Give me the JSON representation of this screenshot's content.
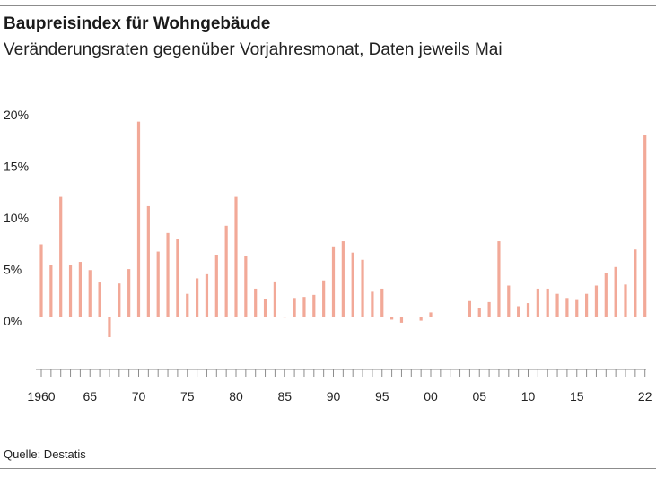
{
  "header": {
    "title": "Baupreisindex für Wohngebäude",
    "subtitle": "Veränderungsraten gegenüber Vorjahresmonat, Daten jeweils Mai"
  },
  "footer": {
    "source": "Quelle: Destatis"
  },
  "colors": {
    "bar": "#f2a998",
    "axis": "#8c8c8c",
    "text": "#222222"
  },
  "chart_data": {
    "type": "bar",
    "title": "Baupreisindex für Wohngebäude",
    "subtitle": "Veränderungsraten gegenüber Vorjahresmonat, Daten jeweils Mai",
    "xlabel": "",
    "ylabel": "",
    "ylim": [
      -5,
      20
    ],
    "y_ticks": [
      0,
      5,
      10,
      15,
      20
    ],
    "y_tick_labels": [
      "0%",
      "5%",
      "10%",
      "15%",
      "20%"
    ],
    "grid": false,
    "x_tick_years": [
      1960,
      1965,
      1970,
      1975,
      1980,
      1985,
      1990,
      1995,
      2000,
      2005,
      2010,
      2015,
      2022
    ],
    "x_tick_labels": [
      "1960",
      "65",
      "70",
      "75",
      "80",
      "85",
      "90",
      "95",
      "00",
      "05",
      "10",
      "15",
      "22"
    ],
    "categories": [
      1960,
      1961,
      1962,
      1963,
      1964,
      1965,
      1966,
      1967,
      1968,
      1969,
      1970,
      1971,
      1972,
      1973,
      1974,
      1975,
      1976,
      1977,
      1978,
      1979,
      1980,
      1981,
      1982,
      1983,
      1984,
      1985,
      1986,
      1987,
      1988,
      1989,
      1990,
      1991,
      1992,
      1993,
      1994,
      1995,
      1996,
      1997,
      1998,
      1999,
      2000,
      2001,
      2002,
      2003,
      2004,
      2005,
      2006,
      2007,
      2008,
      2009,
      2010,
      2011,
      2012,
      2013,
      2014,
      2015,
      2016,
      2017,
      2018,
      2019,
      2020,
      2021,
      2022
    ],
    "values": [
      7.0,
      5.0,
      11.6,
      5.0,
      5.3,
      4.5,
      3.3,
      -2.0,
      3.2,
      4.6,
      18.9,
      10.7,
      6.3,
      8.1,
      7.5,
      2.2,
      3.7,
      4.1,
      6.0,
      8.8,
      11.6,
      5.9,
      2.7,
      1.7,
      3.4,
      -0.1,
      1.8,
      1.9,
      2.1,
      3.5,
      6.8,
      7.3,
      6.2,
      5.5,
      2.4,
      2.7,
      -0.3,
      -0.6,
      0.0,
      -0.4,
      0.4,
      0.0,
      0.0,
      0.0,
      1.5,
      0.8,
      1.4,
      7.3,
      3.0,
      1.0,
      1.3,
      2.7,
      2.7,
      2.2,
      1.8,
      1.6,
      2.2,
      3.0,
      4.2,
      4.8,
      3.1,
      6.5,
      17.6
    ]
  }
}
